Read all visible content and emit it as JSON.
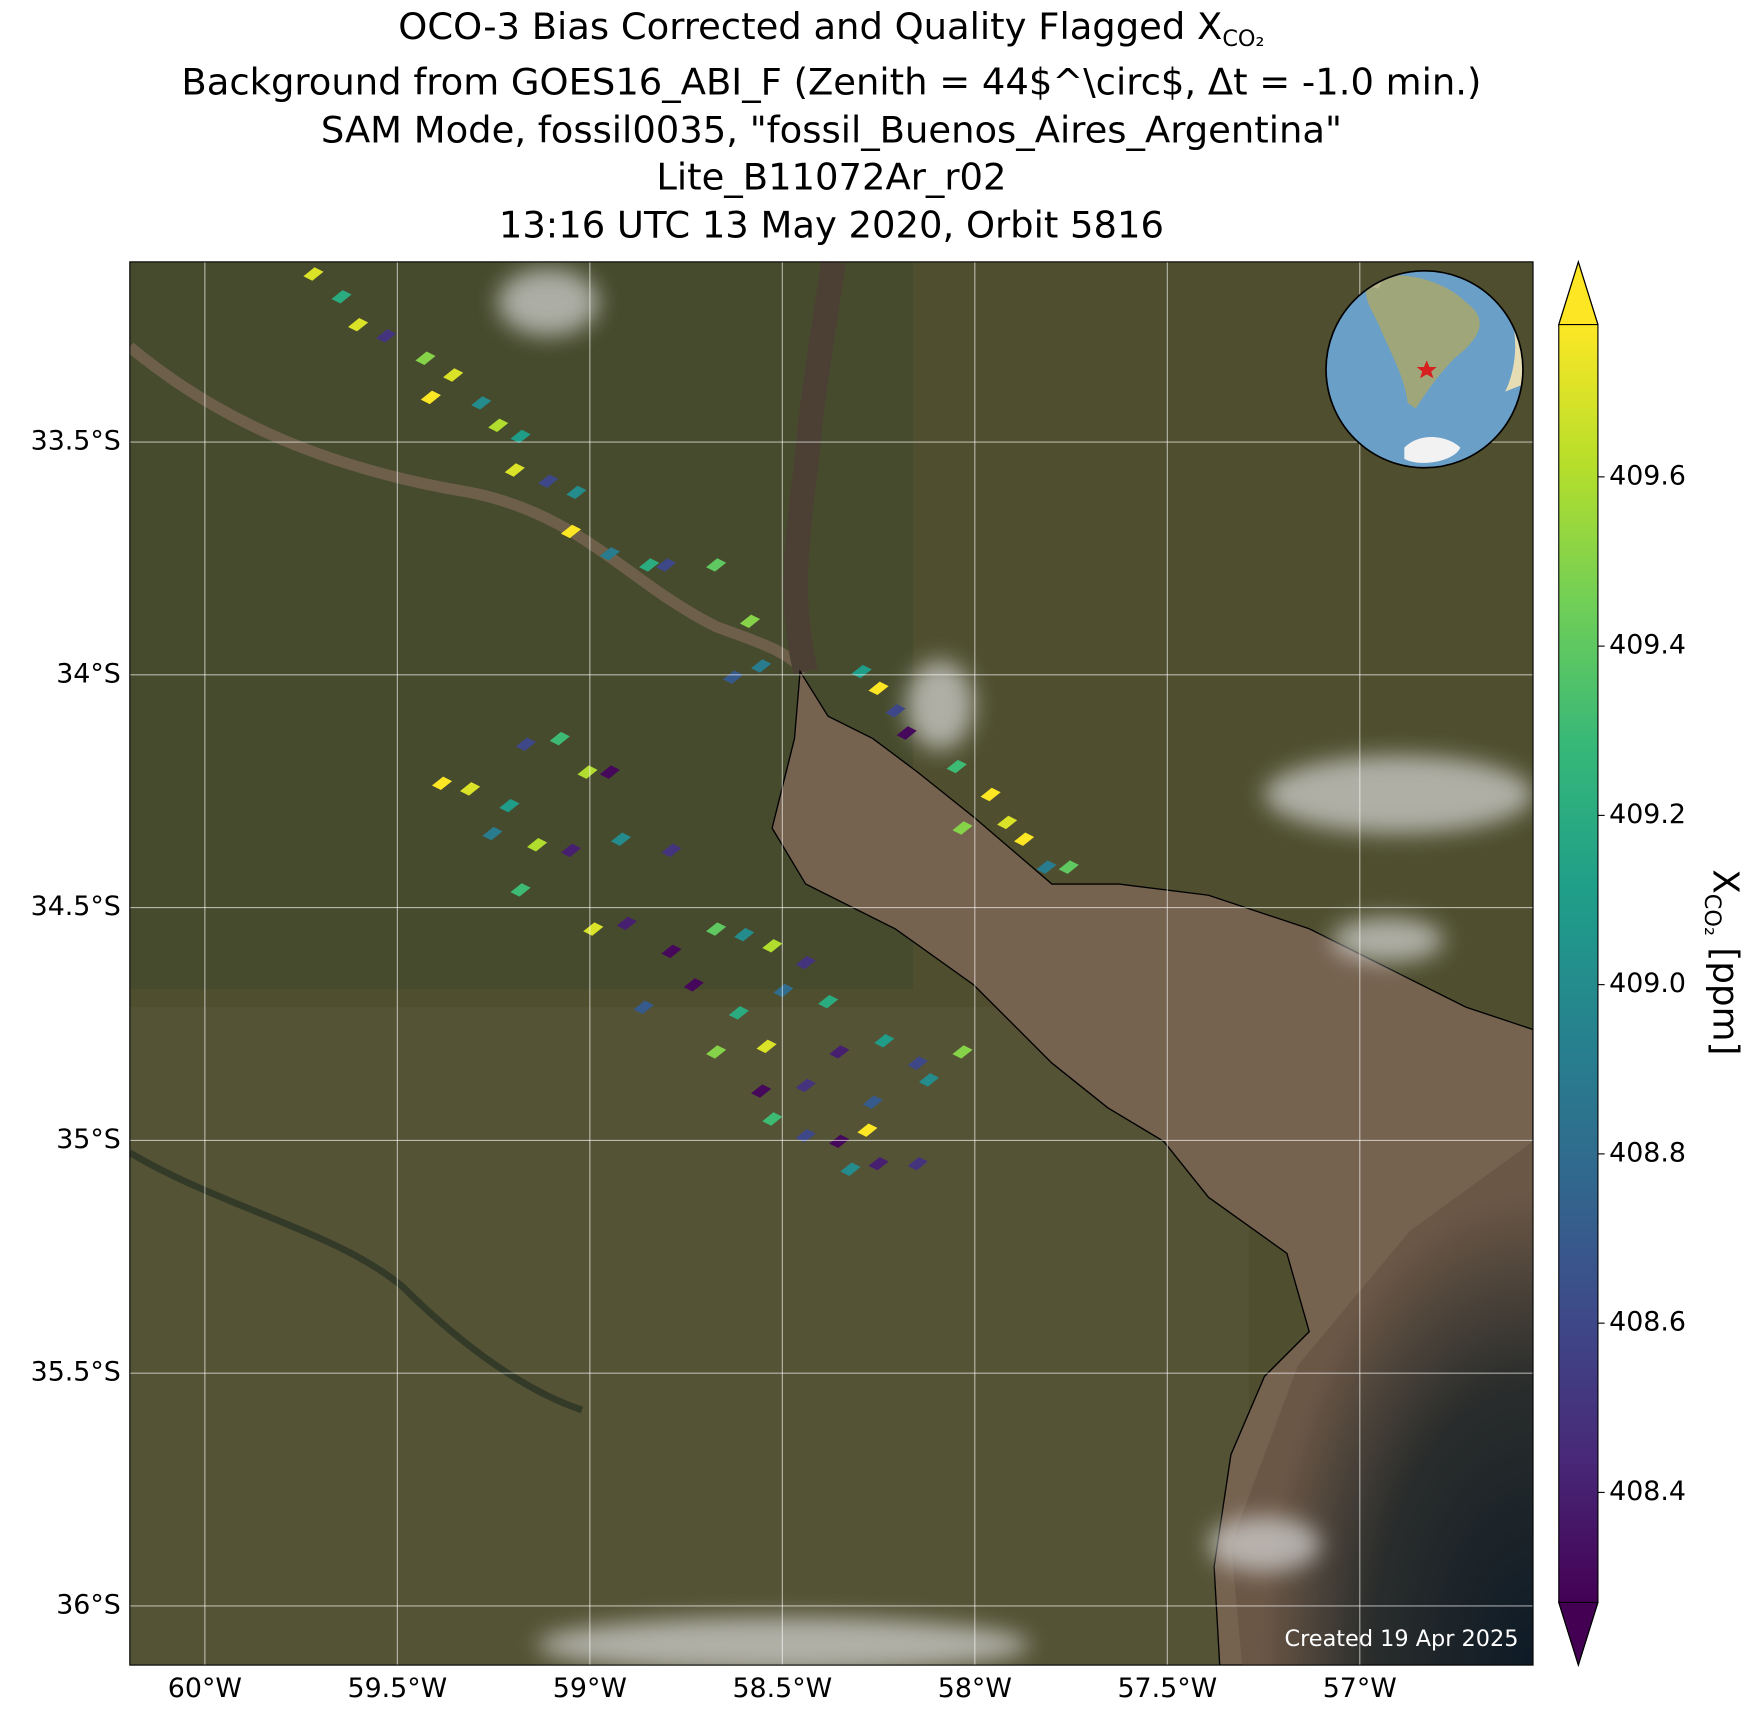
{
  "chart_data": {
    "type": "map",
    "title": [
      "OCO-3 Bias Corrected and Quality Flagged X",
      "Background from GOES16_ABI_F (Zenith = 44$^\\circ$, Δt = -1.0 min.)",
      "SAM Mode, fossil0035, \"fossil_Buenos_Aires_Argentina\"",
      "Lite_B11072Ar_r02",
      "13:16 UTC 13 May 2020, Orbit 5816"
    ],
    "title_subscript": "CO₂",
    "annotation": "Created 19 Apr 2025",
    "xlim": [
      -60.195,
      -56.55
    ],
    "ylim": [
      -36.127,
      -33.113
    ],
    "xticks": [
      {
        "value": -60,
        "label": "60°W"
      },
      {
        "value": -59.5,
        "label": "59.5°W"
      },
      {
        "value": -59,
        "label": "59°W"
      },
      {
        "value": -58.5,
        "label": "58.5°W"
      },
      {
        "value": -58,
        "label": "58°W"
      },
      {
        "value": -57.5,
        "label": "57.5°W"
      },
      {
        "value": -57,
        "label": "57°W"
      }
    ],
    "yticks": [
      {
        "value": -33.5,
        "label": "33.5°S"
      },
      {
        "value": -34,
        "label": "34°S"
      },
      {
        "value": -34.5,
        "label": "34.5°S"
      },
      {
        "value": -35,
        "label": "35°S"
      },
      {
        "value": -35.5,
        "label": "35.5°S"
      },
      {
        "value": -36,
        "label": "36°S"
      }
    ],
    "grid": true,
    "colormap": "viridis",
    "clim": [
      408.27,
      409.78
    ],
    "colorbar_ticks": [
      408.4,
      408.6,
      408.8,
      {
        "value": 409.0,
        "label": "409.0"
      },
      409.2,
      409.4,
      409.6
    ],
    "colorbar_label": {
      "symbol": "X",
      "subscript": "CO₂",
      "unit": "[ppm]"
    },
    "lon": [
      -59.718,
      -59.645,
      -59.602,
      -59.529,
      -59.427,
      -59.355,
      -59.413,
      -59.282,
      -59.238,
      -59.18,
      -59.195,
      -59.108,
      -59.035,
      -59.049,
      -58.948,
      -58.846,
      -58.802,
      -58.672,
      -58.584,
      -58.628,
      -58.555,
      -58.294,
      -58.25,
      -58.206,
      -58.177,
      -58.047,
      -57.959,
      -57.916,
      -57.872,
      -57.814,
      -57.756,
      -58.032,
      -59.384,
      -59.311,
      -59.209,
      -59.166,
      -59.078,
      -59.006,
      -58.948,
      -59.253,
      -59.137,
      -59.049,
      -58.919,
      -58.788,
      -59.18,
      -58.991,
      -58.904,
      -58.788,
      -58.672,
      -58.599,
      -58.526,
      -58.439,
      -58.73,
      -58.613,
      -58.497,
      -58.381,
      -58.86,
      -58.672,
      -58.541,
      -58.352,
      -58.235,
      -58.148,
      -58.555,
      -58.439,
      -58.265,
      -58.119,
      -58.032,
      -58.526,
      -58.439,
      -58.352,
      -58.279,
      -58.323,
      -58.25,
      -58.148
    ],
    "lat": [
      -33.139,
      -33.188,
      -33.248,
      -33.272,
      -33.32,
      -33.356,
      -33.404,
      -33.416,
      -33.464,
      -33.488,
      -33.56,
      -33.584,
      -33.608,
      -33.692,
      -33.74,
      -33.764,
      -33.764,
      -33.764,
      -33.885,
      -34.005,
      -33.981,
      -33.993,
      -34.029,
      -34.077,
      -34.125,
      -34.197,
      -34.257,
      -34.317,
      -34.353,
      -34.413,
      -34.413,
      -34.329,
      -34.233,
      -34.245,
      -34.281,
      -34.149,
      -34.137,
      -34.209,
      -34.209,
      -34.341,
      -34.365,
      -34.377,
      -34.353,
      -34.377,
      -34.462,
      -34.546,
      -34.534,
      -34.594,
      -34.546,
      -34.558,
      -34.582,
      -34.618,
      -34.666,
      -34.726,
      -34.678,
      -34.702,
      -34.714,
      -34.81,
      -34.798,
      -34.81,
      -34.786,
      -34.834,
      -34.894,
      -34.882,
      -34.918,
      -34.87,
      -34.81,
      -34.954,
      -34.99,
      -35.002,
      -34.978,
      -35.062,
      -35.05,
      -35.05
    ],
    "values": [
      409.7,
      409.2,
      409.7,
      408.5,
      409.5,
      409.7,
      409.8,
      409.0,
      409.6,
      409.1,
      409.7,
      408.6,
      409.0,
      409.8,
      408.9,
      409.2,
      408.6,
      409.4,
      409.5,
      408.7,
      408.9,
      409.1,
      409.8,
      408.6,
      408.3,
      409.3,
      409.8,
      409.7,
      409.8,
      408.9,
      409.4,
      409.5,
      409.8,
      409.7,
      409.1,
      408.6,
      409.3,
      409.6,
      408.3,
      408.9,
      409.6,
      408.4,
      409.0,
      408.5,
      409.3,
      409.7,
      408.4,
      408.3,
      409.4,
      409.0,
      409.6,
      408.5,
      408.3,
      409.2,
      408.8,
      409.2,
      408.7,
      409.5,
      409.7,
      408.4,
      409.1,
      408.6,
      408.3,
      408.5,
      408.7,
      409.0,
      409.5,
      409.3,
      408.6,
      408.3,
      409.8,
      409.0,
      408.4,
      408.5
    ]
  }
}
